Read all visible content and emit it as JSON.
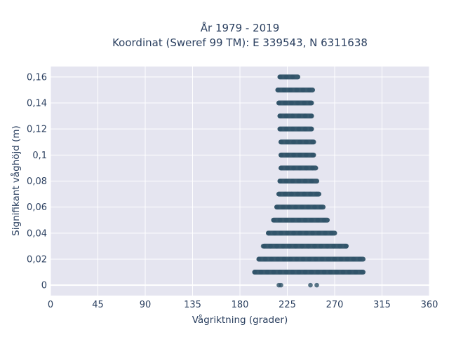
{
  "chart_data": {
    "type": "scatter",
    "title_lines": [
      "År 1979 - 2019",
      "Koordinat (Sweref 99 TM): E 339543, N 6311638"
    ],
    "xlabel": "Vågriktning (grader)",
    "ylabel": "Signifikant våghöjd (m)",
    "xlim": [
      0,
      360
    ],
    "ylim": [
      -0.008,
      0.168
    ],
    "x_ticks": [
      0,
      45,
      90,
      135,
      180,
      225,
      270,
      315,
      360
    ],
    "x_tick_labels": [
      "0",
      "45",
      "90",
      "135",
      "180",
      "225",
      "270",
      "315",
      "360"
    ],
    "y_ticks": [
      0,
      0.02,
      0.04,
      0.06,
      0.08,
      0.1,
      0.12,
      0.14,
      0.16
    ],
    "y_tick_labels": [
      "0",
      "0,02",
      "0,04",
      "0,06",
      "0,08",
      "0,1",
      "0,12",
      "0,14",
      "0,16"
    ],
    "grid": true,
    "marker_color": "#2f5268",
    "plot_background": "#e5e5f0",
    "bands": [
      {
        "y": 0,
        "points": [
          [
            217,
            219
          ],
          [
            247,
            253
          ]
        ]
      },
      {
        "y": 0.01,
        "segments": [
          [
            194,
            297
          ]
        ]
      },
      {
        "y": 0.02,
        "segments": [
          [
            198,
            297
          ]
        ]
      },
      {
        "y": 0.03,
        "segments": [
          [
            203,
            281
          ]
        ],
        "points": [
          [
            202
          ]
        ]
      },
      {
        "y": 0.04,
        "segments": [
          [
            207,
            270
          ]
        ]
      },
      {
        "y": 0.05,
        "segments": [
          [
            212,
            263
          ]
        ]
      },
      {
        "y": 0.06,
        "segments": [
          [
            215,
            259
          ]
        ]
      },
      {
        "y": 0.07,
        "segments": [
          [
            217,
            255
          ]
        ]
      },
      {
        "y": 0.08,
        "segments": [
          [
            218,
            253
          ]
        ]
      },
      {
        "y": 0.09,
        "segments": [
          [
            219,
            252
          ]
        ]
      },
      {
        "y": 0.1,
        "segments": [
          [
            219,
            250
          ]
        ]
      },
      {
        "y": 0.11,
        "segments": [
          [
            219,
            250
          ]
        ]
      },
      {
        "y": 0.12,
        "segments": [
          [
            218,
            248
          ]
        ]
      },
      {
        "y": 0.13,
        "segments": [
          [
            218,
            248
          ]
        ]
      },
      {
        "y": 0.14,
        "segments": [
          [
            217,
            248
          ]
        ]
      },
      {
        "y": 0.15,
        "segments": [
          [
            216,
            249
          ]
        ]
      },
      {
        "y": 0.16,
        "segments": [
          [
            218,
            235
          ]
        ]
      }
    ]
  }
}
